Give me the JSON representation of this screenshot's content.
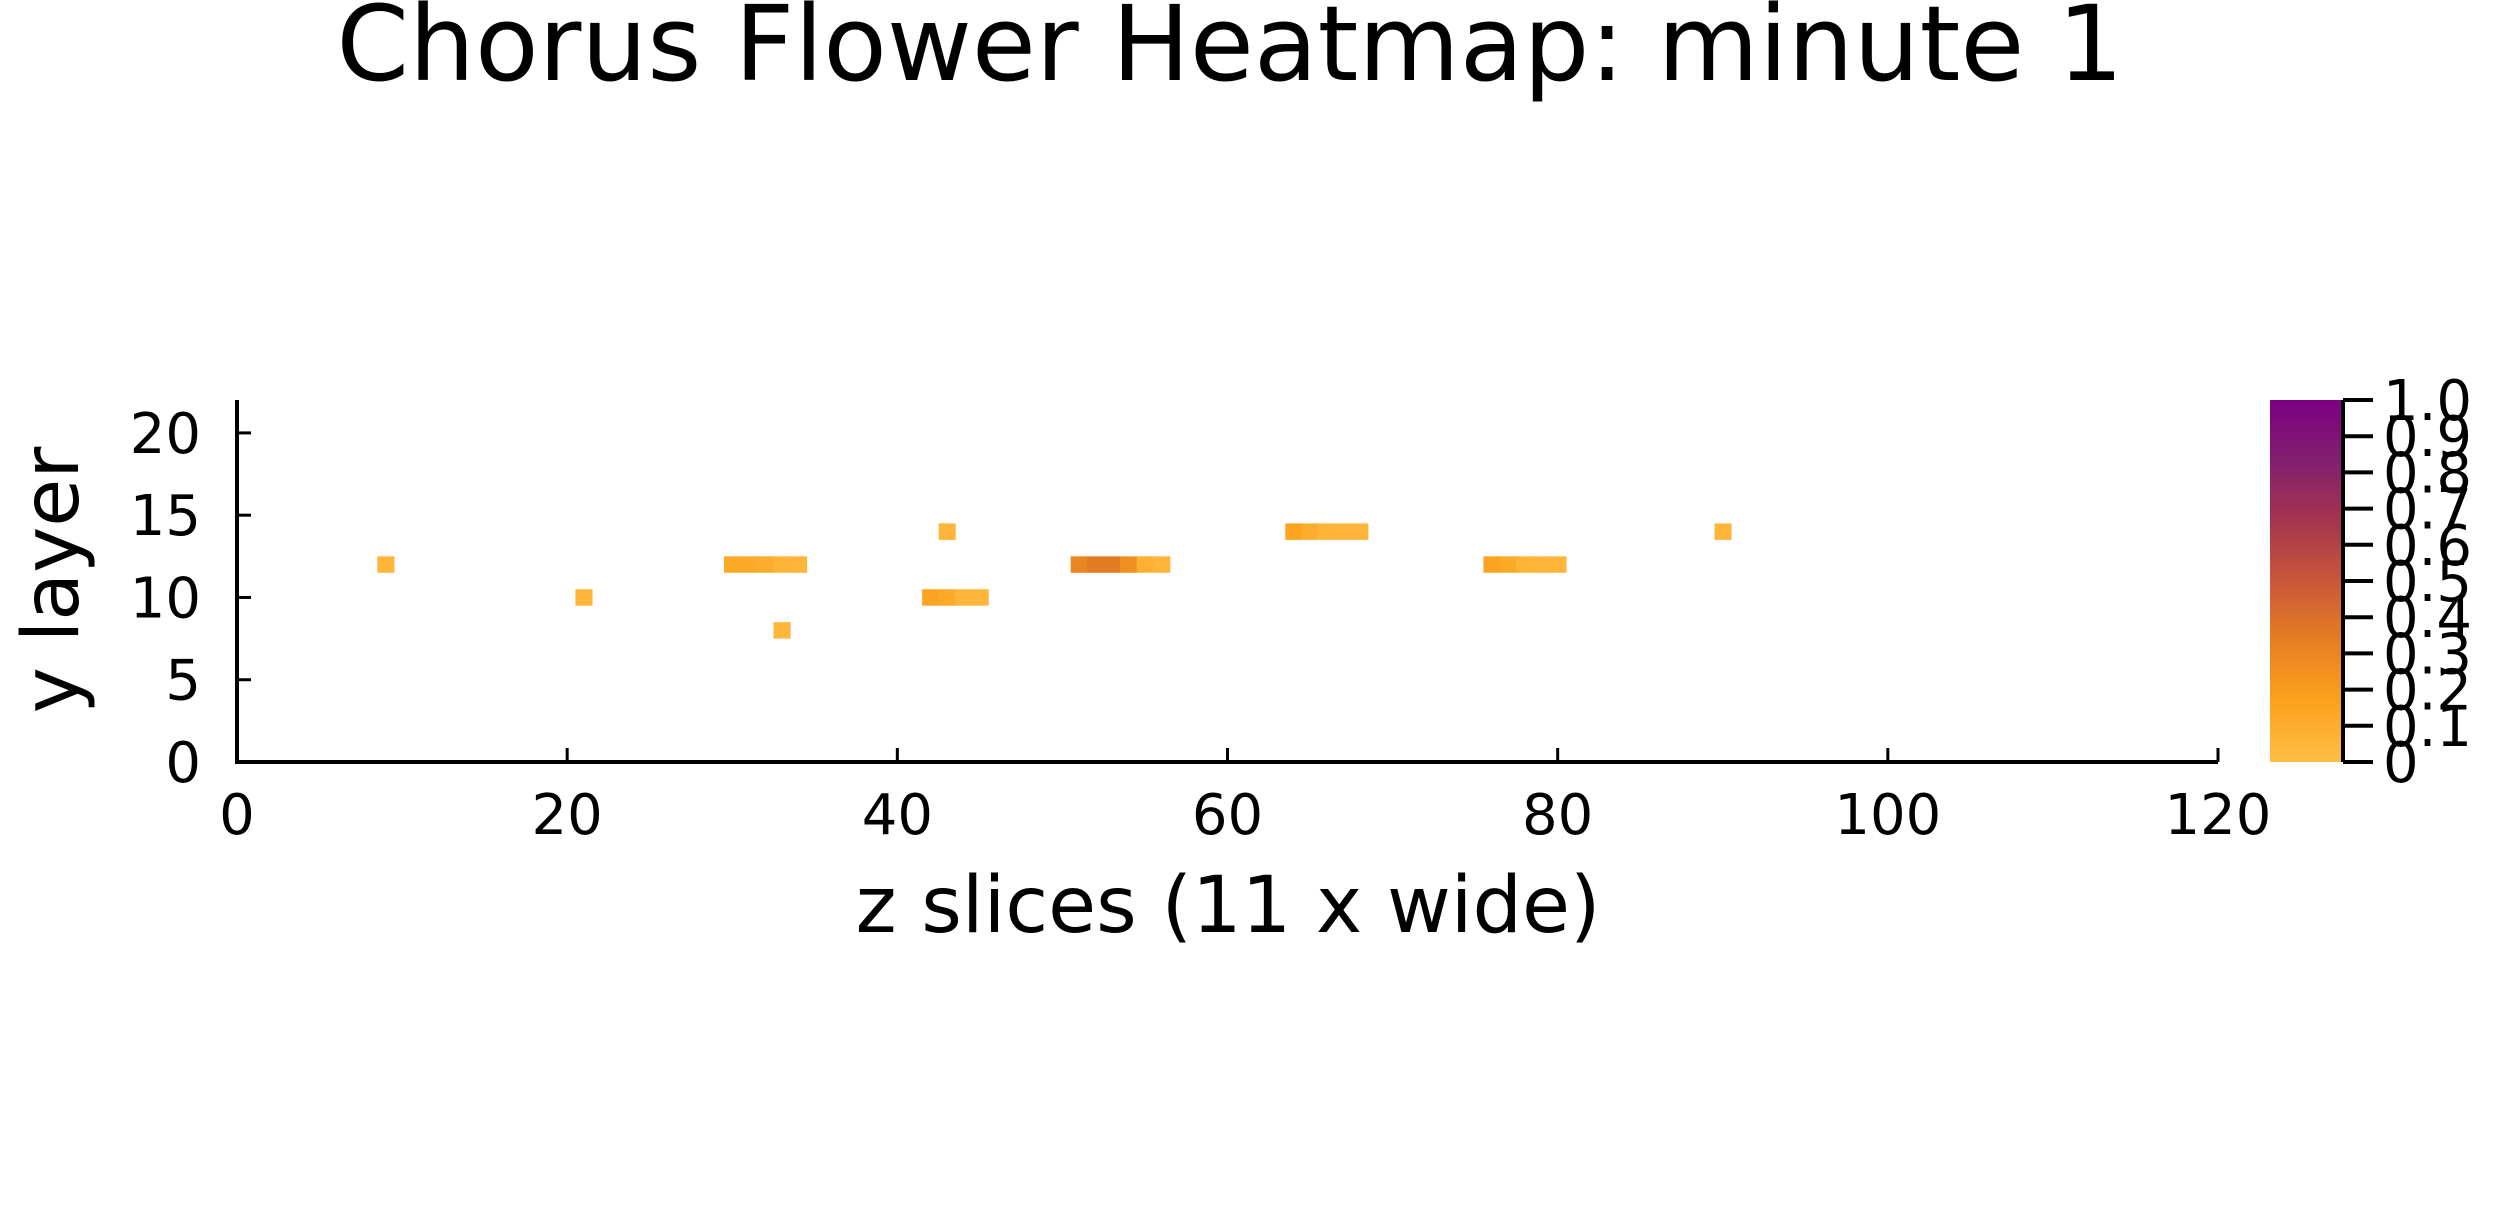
{
  "chart_data": {
    "type": "heatmap",
    "title": "Chorus Flower Heatmap: minute 1",
    "xlabel": "z slices (11 x wide)",
    "ylabel": "y layer",
    "xlim": [
      0,
      120
    ],
    "ylim": [
      0,
      22
    ],
    "xticks": [
      0,
      20,
      40,
      60,
      80,
      100,
      120
    ],
    "yticks": [
      0,
      5,
      10,
      15,
      20
    ],
    "cell_size": 1,
    "grid": false,
    "colorbar": {
      "min": 0,
      "max": 1.0,
      "ticks": [
        "0",
        "0.1",
        "0.2",
        "0.3",
        "0.4",
        "0.5",
        "0.6",
        "0.7",
        "0.8",
        "0.9",
        "1.0"
      ],
      "placement": "right",
      "colors": [
        "#ffbe45",
        "#fca11d",
        "#e67f22",
        "#c9573a",
        "#a53450",
        "#821f6f",
        "#7b0083"
      ]
    },
    "cells": [
      {
        "x": 9,
        "y": 12,
        "v": 0.05
      },
      {
        "x": 21,
        "y": 10,
        "v": 0.05
      },
      {
        "x": 30,
        "y": 12,
        "v": 0.12
      },
      {
        "x": 31,
        "y": 12,
        "v": 0.12
      },
      {
        "x": 32,
        "y": 12,
        "v": 0.1
      },
      {
        "x": 33,
        "y": 12,
        "v": 0.06
      },
      {
        "x": 34,
        "y": 12,
        "v": 0.05
      },
      {
        "x": 33,
        "y": 8,
        "v": 0.05
      },
      {
        "x": 42,
        "y": 10,
        "v": 0.15
      },
      {
        "x": 43,
        "y": 10,
        "v": 0.12
      },
      {
        "x": 44,
        "y": 10,
        "v": 0.05
      },
      {
        "x": 45,
        "y": 10,
        "v": 0.05
      },
      {
        "x": 43,
        "y": 14,
        "v": 0.05
      },
      {
        "x": 51,
        "y": 12,
        "v": 0.3
      },
      {
        "x": 52,
        "y": 12,
        "v": 0.35
      },
      {
        "x": 53,
        "y": 12,
        "v": 0.35
      },
      {
        "x": 54,
        "y": 12,
        "v": 0.25
      },
      {
        "x": 55,
        "y": 12,
        "v": 0.08
      },
      {
        "x": 56,
        "y": 12,
        "v": 0.05
      },
      {
        "x": 64,
        "y": 14,
        "v": 0.15
      },
      {
        "x": 65,
        "y": 14,
        "v": 0.1
      },
      {
        "x": 66,
        "y": 14,
        "v": 0.06
      },
      {
        "x": 67,
        "y": 14,
        "v": 0.05
      },
      {
        "x": 68,
        "y": 14,
        "v": 0.05
      },
      {
        "x": 76,
        "y": 12,
        "v": 0.15
      },
      {
        "x": 77,
        "y": 12,
        "v": 0.12
      },
      {
        "x": 78,
        "y": 12,
        "v": 0.06
      },
      {
        "x": 79,
        "y": 12,
        "v": 0.05
      },
      {
        "x": 80,
        "y": 12,
        "v": 0.05
      },
      {
        "x": 90,
        "y": 14,
        "v": 0.05
      }
    ]
  }
}
